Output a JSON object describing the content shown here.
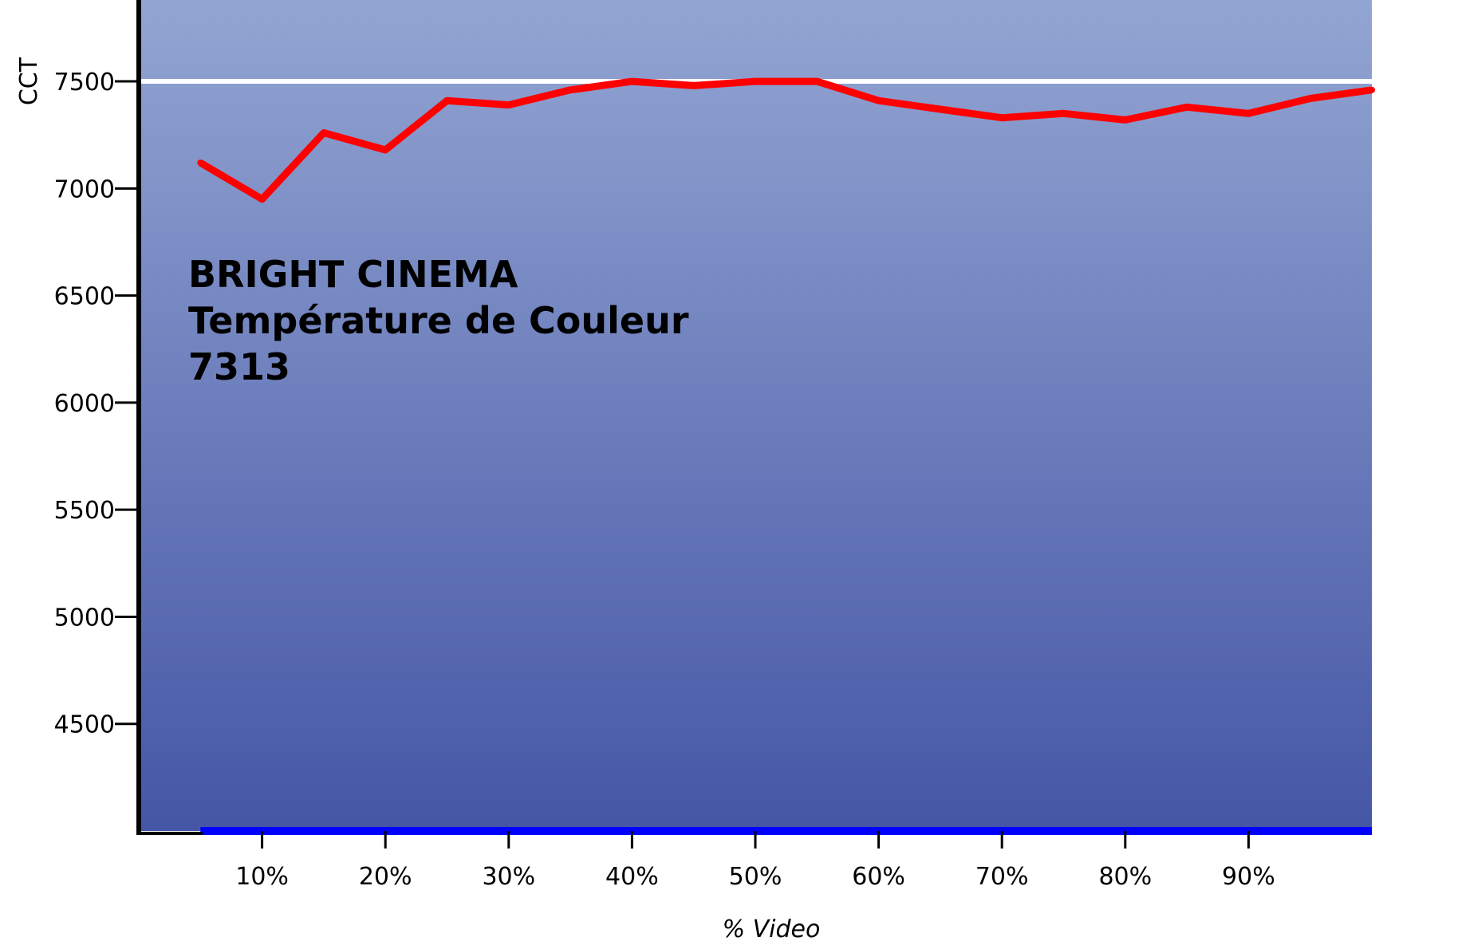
{
  "chart_data": {
    "type": "line",
    "title": "",
    "xlabel": "% Video",
    "ylabel": "CCT",
    "x": [
      5,
      10,
      15,
      20,
      25,
      30,
      35,
      40,
      45,
      50,
      55,
      60,
      65,
      70,
      75,
      80,
      85,
      90,
      95,
      100
    ],
    "xlim": [
      0,
      100
    ],
    "ylim": [
      4000,
      7880
    ],
    "x_ticks": [
      10,
      20,
      30,
      40,
      50,
      60,
      70,
      80,
      90
    ],
    "x_tick_labels": [
      "10%",
      "20%",
      "30%",
      "40%",
      "50%",
      "60%",
      "70%",
      "80%",
      "90%"
    ],
    "y_ticks": [
      4500,
      5000,
      5500,
      6000,
      6500,
      7000,
      7500
    ],
    "y_tick_labels": [
      "4500",
      "5000",
      "5500",
      "6000",
      "6500",
      "7000",
      "7500"
    ],
    "reference_line": 7500,
    "series": [
      {
        "color": "#ff0000",
        "values": [
          7120,
          6950,
          7260,
          7180,
          7410,
          7390,
          7460,
          7500,
          7480,
          7500,
          7500,
          7410,
          7370,
          7330,
          7350,
          7320,
          7380,
          7350,
          7420,
          7460
        ]
      }
    ],
    "annotation": {
      "lines": [
        "BRIGHT CINEMA",
        "Température de Couleur",
        "7313"
      ]
    },
    "colors": {
      "background_top": "#93a5d2",
      "background_bottom": "#4556a6",
      "reference_line": "#ffffff",
      "baseline": "#0000ff",
      "axis": "#000000"
    },
    "grid": false,
    "legend": "none"
  }
}
